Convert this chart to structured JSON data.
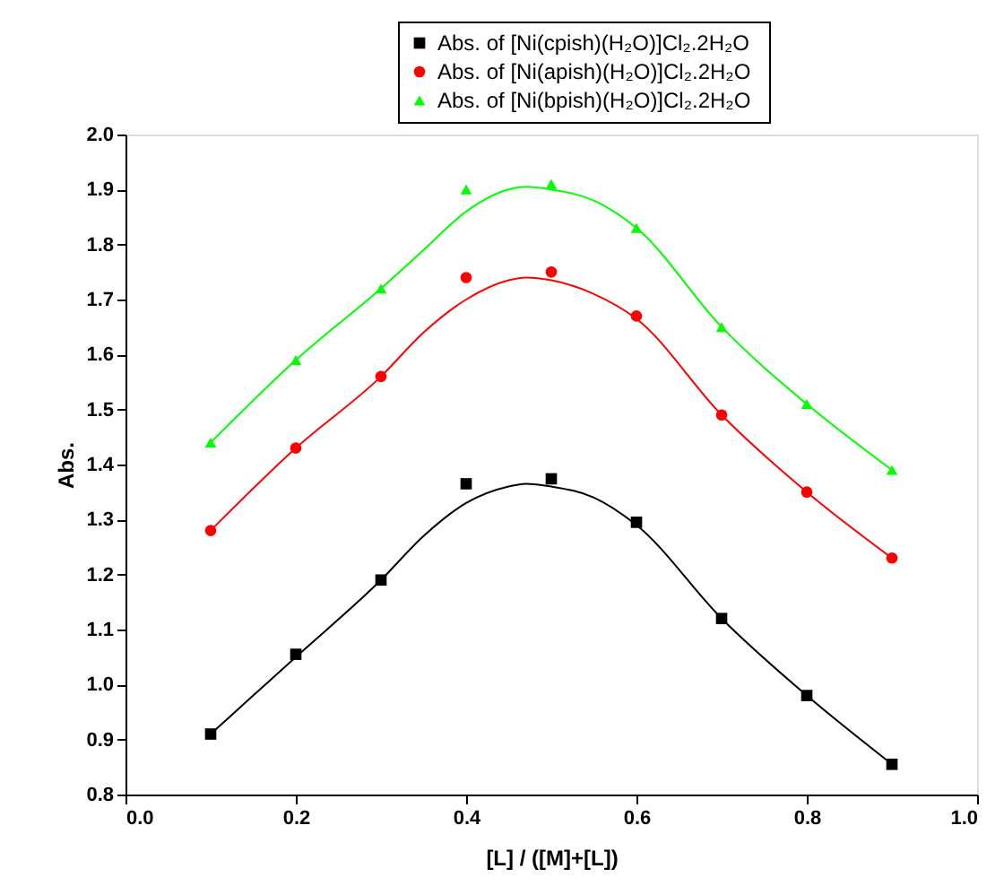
{
  "chart_data": {
    "type": "scatter",
    "xlabel": "[L] / ([M]+[L])",
    "ylabel": "Abs.",
    "xlim": [
      0.0,
      1.0
    ],
    "xticks": [
      {
        "value": 0,
        "label": "0.0"
      },
      0.2,
      0.4,
      0.6,
      0.8,
      {
        "value": 1,
        "label": "1.0"
      }
    ],
    "ylim": [
      0.8,
      2.0
    ],
    "yticks": [
      0.8,
      0.9,
      {
        "value": 1,
        "label": "1.0"
      },
      1.1,
      1.2,
      1.3,
      1.4,
      1.5,
      1.6,
      1.7,
      1.8,
      1.9,
      {
        "value": 2,
        "label": "2.0"
      }
    ],
    "grid": false,
    "legend": "top right",
    "x": [
      0.1,
      0.2,
      0.3,
      0.4,
      0.5,
      0.6,
      0.7,
      0.8,
      0.9
    ],
    "series": [
      {
        "name": "Abs. of [Ni(cpish)(H₂O)]Cl₂.2H₂O",
        "color": "#000000",
        "marker": "square",
        "values": [
          0.91,
          1.055,
          1.19,
          1.365,
          1.374,
          1.295,
          1.12,
          0.98,
          0.855
        ]
      },
      {
        "name": "Abs. of  [Ni(apish)(H₂O)]Cl₂.2H₂O",
        "color": "#ff0000",
        "marker": "circle",
        "values": [
          1.28,
          1.43,
          1.56,
          1.74,
          1.75,
          1.67,
          1.49,
          1.35,
          1.23
        ]
      },
      {
        "name": "Abs. of  [Ni(bpish)(H₂O)]Cl₂.2H₂O",
        "color": "#00ff00",
        "marker": "triangle",
        "values": [
          1.44,
          1.59,
          1.72,
          1.9,
          1.91,
          1.83,
          1.65,
          1.51,
          1.39
        ]
      },
      {
        "type": "line",
        "color": "#000000",
        "marker": "none",
        "x": [
          0.1,
          0.2,
          0.3,
          0.35,
          0.4,
          0.45,
          0.47,
          0.5,
          0.55,
          0.6,
          0.7,
          0.8,
          0.9
        ],
        "values": [
          0.91,
          1.05,
          1.19,
          1.27,
          1.33,
          1.36,
          1.365,
          1.36,
          1.34,
          1.29,
          1.12,
          0.98,
          0.855
        ]
      },
      {
        "type": "line",
        "color": "#ff0000",
        "marker": "none",
        "x": [
          0.1,
          0.2,
          0.3,
          0.35,
          0.4,
          0.45,
          0.47,
          0.5,
          0.55,
          0.6,
          0.7,
          0.8,
          0.9
        ],
        "values": [
          1.28,
          1.43,
          1.56,
          1.64,
          1.7,
          1.735,
          1.74,
          1.735,
          1.71,
          1.665,
          1.49,
          1.35,
          1.23
        ]
      },
      {
        "type": "line",
        "color": "#00ff00",
        "marker": "none",
        "x": [
          0.1,
          0.2,
          0.3,
          0.35,
          0.4,
          0.45,
          0.47,
          0.5,
          0.55,
          0.6,
          0.7,
          0.8,
          0.9
        ],
        "values": [
          1.44,
          1.59,
          1.72,
          1.79,
          1.86,
          1.9,
          1.905,
          1.9,
          1.88,
          1.83,
          1.65,
          1.51,
          1.39
        ]
      }
    ]
  }
}
